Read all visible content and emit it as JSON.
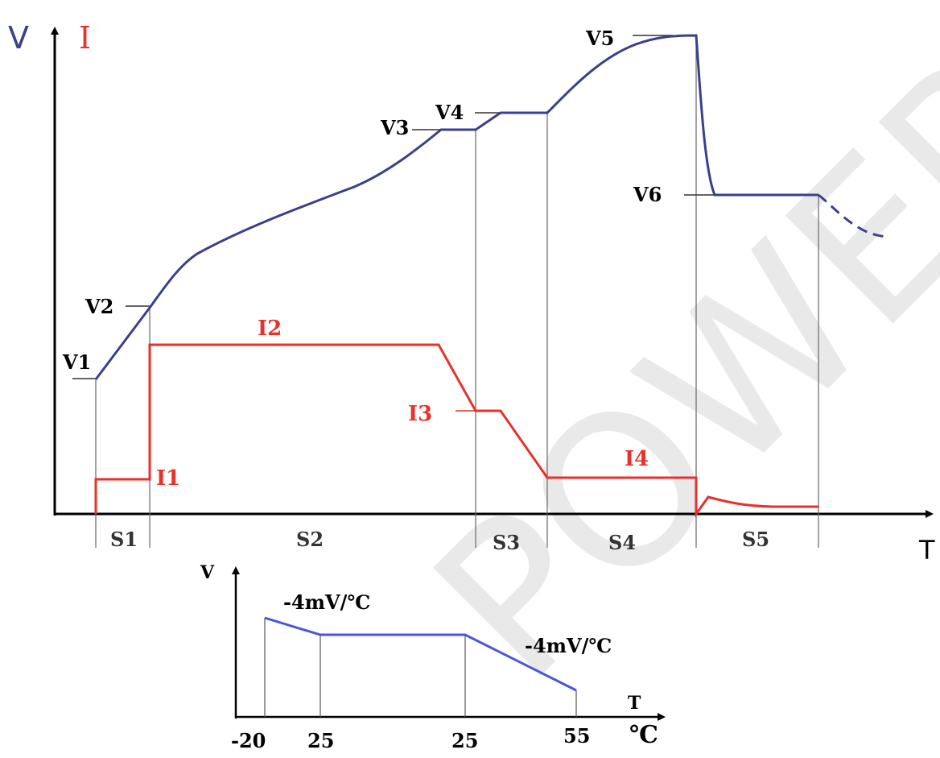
{
  "axes": {
    "v_label": "V",
    "i_label": "I",
    "t_label": "T"
  },
  "voltage_labels": [
    "V1",
    "V2",
    "V3",
    "V4",
    "V5",
    "V6"
  ],
  "current_labels": [
    "I1",
    "I2",
    "I3",
    "I4"
  ],
  "stages": [
    "S1",
    "S2",
    "S3",
    "S4",
    "S5"
  ],
  "inset": {
    "v_label": "V",
    "t_label": "T",
    "unit_label": "℃",
    "slope_left": "-4mV/℃",
    "slope_right": "-4mV/℃",
    "x_ticks": [
      "-20",
      "25",
      "25",
      "55"
    ]
  },
  "watermark": "POWER",
  "colors": {
    "voltage": "#3b3f8c",
    "current": "#e8312a",
    "inset_line": "#4a55d8",
    "axis": "#000000",
    "guide": "#555555"
  }
}
